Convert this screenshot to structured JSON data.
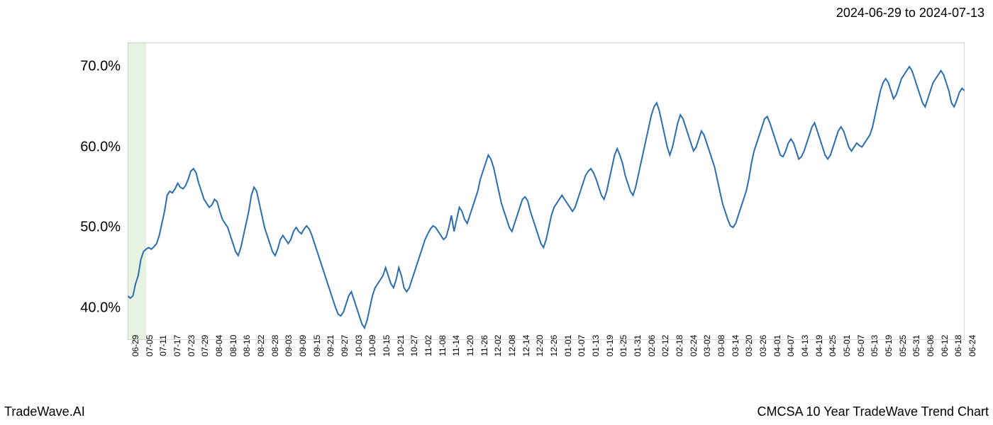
{
  "header": {
    "date_range": "2024-06-29 to 2024-07-13"
  },
  "footer": {
    "left": "TradeWave.AI",
    "right": "CMCSA 10 Year TradeWave Trend Chart"
  },
  "chart": {
    "type": "line",
    "line_color": "#2a6db3",
    "line_width": 2,
    "highlight_band_color": "#d4e8c8",
    "highlight_band_opacity": 0.55,
    "background_color": "#ffffff",
    "border_color": "#b0b0b0",
    "text_color": "#000000",
    "ylim": [
      36,
      73
    ],
    "y_ticks": [
      40,
      50,
      60,
      70
    ],
    "y_tick_labels": [
      "40.0%",
      "50.0%",
      "60.0%",
      "70.0%"
    ],
    "y_label_fontsize": 20,
    "x_label_fontsize": 12,
    "x_ticks": [
      "06-29",
      "07-05",
      "07-11",
      "07-17",
      "07-23",
      "07-29",
      "08-04",
      "08-10",
      "08-16",
      "08-22",
      "08-28",
      "09-03",
      "09-09",
      "09-15",
      "09-21",
      "09-27",
      "10-03",
      "10-09",
      "10-15",
      "10-21",
      "10-27",
      "11-02",
      "11-08",
      "11-14",
      "11-20",
      "11-26",
      "12-02",
      "12-08",
      "12-14",
      "12-20",
      "12-26",
      "01-01",
      "01-07",
      "01-13",
      "01-19",
      "01-25",
      "01-31",
      "02-06",
      "02-12",
      "02-18",
      "02-24",
      "03-02",
      "03-08",
      "03-14",
      "03-20",
      "03-26",
      "04-01",
      "04-07",
      "04-13",
      "04-19",
      "04-25",
      "05-01",
      "05-07",
      "05-13",
      "05-19",
      "05-25",
      "05-31",
      "06-06",
      "06-12",
      "06-18",
      "06-24"
    ],
    "highlight_band": {
      "start_index": 0,
      "end_index": 7
    },
    "series": [
      41.5,
      41.2,
      41.5,
      43.0,
      44.0,
      46.0,
      47.0,
      47.3,
      47.5,
      47.3,
      47.6,
      48.0,
      49.0,
      50.5,
      52.0,
      54.0,
      54.5,
      54.3,
      54.8,
      55.5,
      55.0,
      54.8,
      55.2,
      56.0,
      57.0,
      57.3,
      56.8,
      55.5,
      54.5,
      53.5,
      53.0,
      52.5,
      52.8,
      53.5,
      53.2,
      52.0,
      51.0,
      50.5,
      50.0,
      49.0,
      48.0,
      47.0,
      46.5,
      47.5,
      49.0,
      50.5,
      52.0,
      54.0,
      55.0,
      54.5,
      53.0,
      51.5,
      50.0,
      49.0,
      48.0,
      47.0,
      46.5,
      47.3,
      48.5,
      49.0,
      48.5,
      48.0,
      48.5,
      49.5,
      50.0,
      49.5,
      49.2,
      49.8,
      50.2,
      49.8,
      49.0,
      48.0,
      47.0,
      46.0,
      45.0,
      44.0,
      43.0,
      42.0,
      41.0,
      40.0,
      39.2,
      39.0,
      39.5,
      40.5,
      41.5,
      42.0,
      41.0,
      40.0,
      39.0,
      38.0,
      37.5,
      38.5,
      40.0,
      41.5,
      42.5,
      43.0,
      43.5,
      44.0,
      45.0,
      44.0,
      43.0,
      42.5,
      43.5,
      45.0,
      44.0,
      42.5,
      42.0,
      42.5,
      43.5,
      44.5,
      45.5,
      46.5,
      47.5,
      48.5,
      49.2,
      49.8,
      50.2,
      50.0,
      49.5,
      49.0,
      48.5,
      48.8,
      50.0,
      51.5,
      49.5,
      51.0,
      52.5,
      52.0,
      51.0,
      50.5,
      51.5,
      52.5,
      53.5,
      54.5,
      56.0,
      57.0,
      58.0,
      59.0,
      58.5,
      57.5,
      56.0,
      54.5,
      53.0,
      52.0,
      51.0,
      50.0,
      49.5,
      50.5,
      51.5,
      52.5,
      53.5,
      53.8,
      53.3,
      52.0,
      51.0,
      50.0,
      49.0,
      48.0,
      47.5,
      48.5,
      50.0,
      51.5,
      52.5,
      53.0,
      53.5,
      54.0,
      53.5,
      53.0,
      52.5,
      52.0,
      52.5,
      53.5,
      54.5,
      55.5,
      56.5,
      57.0,
      57.3,
      56.8,
      56.0,
      55.0,
      54.0,
      53.5,
      54.5,
      56.0,
      57.5,
      59.0,
      59.8,
      59.0,
      58.0,
      56.5,
      55.5,
      54.5,
      54.0,
      55.0,
      56.5,
      58.0,
      59.5,
      61.0,
      62.5,
      64.0,
      65.0,
      65.5,
      64.5,
      63.0,
      61.5,
      60.0,
      59.0,
      60.0,
      61.5,
      63.0,
      64.0,
      63.5,
      62.5,
      61.5,
      60.5,
      59.5,
      60.0,
      61.0,
      62.0,
      61.5,
      60.5,
      59.5,
      58.5,
      57.5,
      56.0,
      54.5,
      53.0,
      52.0,
      51.0,
      50.2,
      50.0,
      50.5,
      51.5,
      52.5,
      53.5,
      54.5,
      56.0,
      58.0,
      59.5,
      60.5,
      61.5,
      62.5,
      63.5,
      63.8,
      63.0,
      62.0,
      61.0,
      60.0,
      59.0,
      58.8,
      59.5,
      60.5,
      61.0,
      60.5,
      59.5,
      58.5,
      58.8,
      59.5,
      60.5,
      61.5,
      62.5,
      63.0,
      62.0,
      61.0,
      60.0,
      59.0,
      58.5,
      59.0,
      60.0,
      61.0,
      62.0,
      62.5,
      62.0,
      61.0,
      60.0,
      59.5,
      60.0,
      60.5,
      60.2,
      60.0,
      60.5,
      61.0,
      61.5,
      62.5,
      64.0,
      65.5,
      67.0,
      68.0,
      68.5,
      68.0,
      67.0,
      66.0,
      66.5,
      67.5,
      68.5,
      69.0,
      69.5,
      70.0,
      69.5,
      68.5,
      67.5,
      66.5,
      65.5,
      65.0,
      66.0,
      67.0,
      68.0,
      68.5,
      69.0,
      69.5,
      69.0,
      68.0,
      67.0,
      65.5,
      65.0,
      65.8,
      66.8,
      67.3,
      67.0
    ]
  }
}
